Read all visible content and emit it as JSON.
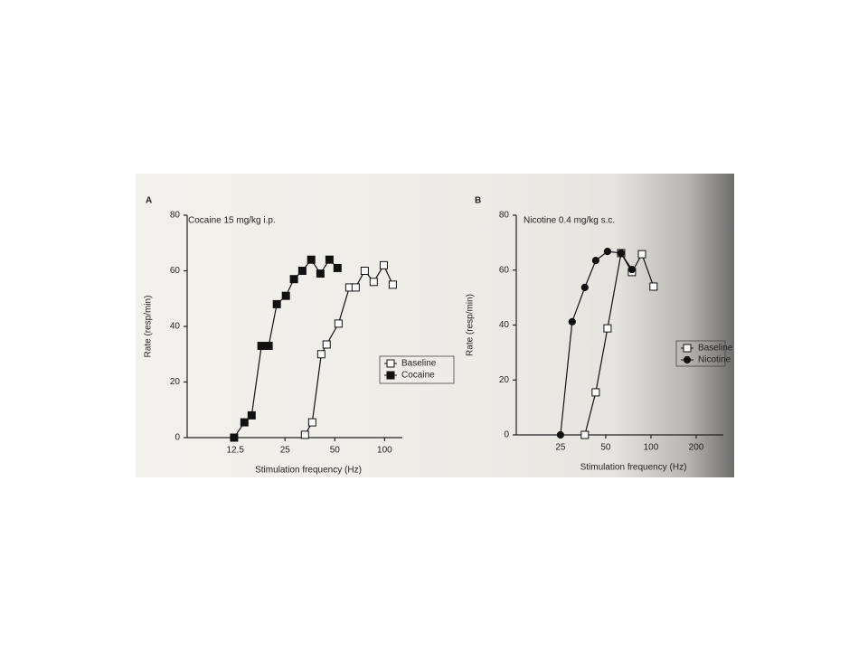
{
  "chart_data": [
    {
      "type": "line",
      "panel": "A",
      "title": "Cocaine 15 mg/kg  i.p.",
      "xlabel": "Stimulation frequency (Hz)",
      "ylabel": "Rate (resp/min)",
      "xscale": "log",
      "xlim": [
        6.4,
        128
      ],
      "xticks": [
        12.5,
        25,
        50,
        100
      ],
      "ylim": [
        0,
        80
      ],
      "yticks": [
        0,
        20,
        40,
        60,
        80
      ],
      "series": [
        {
          "name": "Baseline",
          "color": "#111111",
          "marker": "square",
          "fill": "#ffffff",
          "x": [
            33,
            36.5,
            41.4,
            44.6,
            52.6,
            61.2,
            66.8,
            75.8,
            85.9,
            98.8,
            112
          ],
          "values": [
            1,
            5.5,
            30,
            33.5,
            41,
            54,
            54,
            60,
            56,
            62,
            55
          ]
        },
        {
          "name": "Cocaine",
          "color": "#111111",
          "marker": "square",
          "fill": "#111111",
          "x": [
            12.3,
            14.2,
            15.7,
            18,
            19.9,
            22.3,
            25.3,
            28.3,
            31.8,
            36,
            40.9,
            46.4,
            51.9
          ],
          "values": [
            0,
            5.5,
            8,
            33,
            33,
            48,
            51,
            57,
            60,
            64,
            59,
            64,
            61
          ]
        }
      ]
    },
    {
      "type": "line",
      "panel": "B",
      "title": "Nicotine 0.4 mg/kg  s.c.",
      "xlabel": "Stimulation frequency (Hz)",
      "ylabel": "Rate (resp/min)",
      "xscale": "log",
      "xlim": [
        12.7,
        303
      ],
      "xticks": [
        25,
        50,
        100,
        200
      ],
      "ylim": [
        0,
        80
      ],
      "yticks": [
        0,
        20,
        40,
        60,
        80
      ],
      "series": [
        {
          "name": "Baseline",
          "color": "#111111",
          "marker": "square",
          "fill": "#ffffff",
          "x": [
            36.3,
            42.9,
            51.4,
            63.3,
            74.7,
            87.1,
            104
          ],
          "values": [
            0,
            15.5,
            38.8,
            66.2,
            59.3,
            65.8,
            54
          ]
        },
        {
          "name": "Nicotine",
          "color": "#111111",
          "marker": "circle",
          "fill": "#111111",
          "x": [
            25,
            29.9,
            36.3,
            42.9,
            51.4,
            63.3,
            74.7
          ],
          "values": [
            0,
            41.2,
            53.7,
            63.5,
            66.8,
            66.2,
            60.2
          ]
        }
      ]
    }
  ]
}
